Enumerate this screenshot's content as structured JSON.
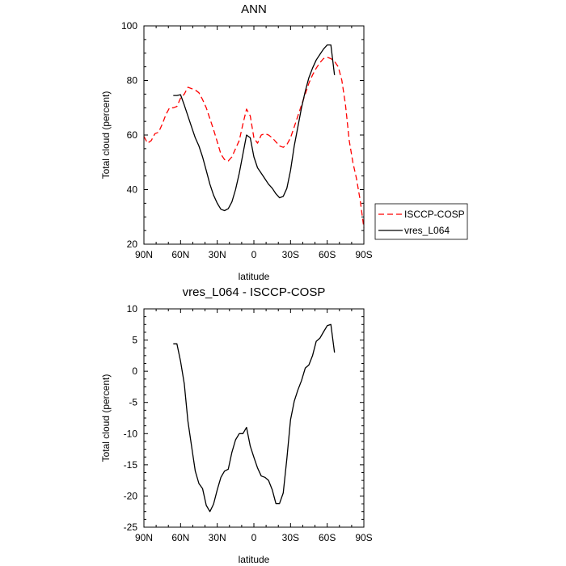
{
  "chart_data": [
    {
      "type": "line",
      "title": "ANN",
      "xlabel": "latitude",
      "ylabel": "Total cloud (percent)",
      "xlim": [
        90,
        -90
      ],
      "ylim": [
        20,
        100
      ],
      "x_ticks": [
        90,
        60,
        30,
        0,
        -30,
        -60,
        -90
      ],
      "x_tick_labels": [
        "90N",
        "60N",
        "30N",
        "0",
        "30S",
        "60S",
        "90S"
      ],
      "y_ticks": [
        20,
        40,
        60,
        80,
        100
      ],
      "y_tick_labels": [
        "20",
        "40",
        "60",
        "80",
        "100"
      ],
      "legend": "right",
      "series": [
        {
          "name": "ISCCP-COSP",
          "color": "#ff0000",
          "dash": "dashed",
          "x": [
            90,
            87,
            84,
            81,
            78,
            75,
            72,
            69,
            66,
            63,
            60,
            57,
            54,
            51,
            48,
            45,
            42,
            39,
            36,
            33,
            30,
            27,
            24,
            21,
            18,
            15,
            12,
            9,
            6,
            3,
            0,
            -3,
            -6,
            -9,
            -12,
            -15,
            -18,
            -21,
            -24,
            -27,
            -30,
            -33,
            -36,
            -39,
            -42,
            -45,
            -48,
            -51,
            -54,
            -57,
            -60,
            -63,
            -66,
            -69,
            -72,
            -75,
            -78,
            -81,
            -84,
            -87,
            -90
          ],
          "y": [
            59.5,
            57,
            58,
            60.5,
            61,
            64,
            67.5,
            70,
            70,
            70.5,
            73.5,
            75,
            77.5,
            77,
            76.5,
            75.5,
            73,
            70,
            66,
            62,
            57.5,
            53,
            51,
            50.5,
            52,
            55,
            58,
            64,
            69.5,
            67,
            59,
            57,
            60,
            60.5,
            60,
            59,
            57.5,
            56,
            55.5,
            56.5,
            59,
            63,
            67,
            71,
            75,
            79,
            82,
            84.5,
            86.5,
            88,
            88.5,
            88,
            87,
            85,
            80,
            71,
            58,
            50,
            44,
            36,
            26
          ]
        },
        {
          "name": "vres_L064",
          "color": "#000000",
          "dash": "solid",
          "x": [
            66,
            63,
            60,
            57,
            54,
            51,
            48,
            45,
            42,
            39,
            36,
            33,
            30,
            27,
            24,
            21,
            18,
            15,
            12,
            9,
            6,
            3,
            0,
            -3,
            -6,
            -9,
            -12,
            -15,
            -18,
            -21,
            -24,
            -27,
            -30,
            -33,
            -36,
            -39,
            -42,
            -45,
            -48,
            -51,
            -54,
            -57,
            -60,
            -63,
            -66
          ],
          "y": [
            74.5,
            74.5,
            74.8,
            71,
            67,
            63,
            59,
            56,
            52,
            47,
            42,
            38,
            35,
            32.8,
            32.3,
            33,
            35.5,
            40,
            46,
            53,
            60,
            59,
            52,
            48,
            46,
            44,
            42,
            40.5,
            38.5,
            37,
            37.5,
            40.5,
            47,
            56,
            63,
            70,
            76,
            81,
            84.5,
            87.5,
            89.5,
            91.5,
            93,
            93,
            82
          ]
        }
      ]
    },
    {
      "type": "line",
      "title": "vres_L064 - ISCCP-COSP",
      "xlabel": "latitude",
      "ylabel": "Total cloud (percent)",
      "xlim": [
        90,
        -90
      ],
      "ylim": [
        -25,
        10
      ],
      "x_ticks": [
        90,
        60,
        30,
        0,
        -30,
        -60,
        -90
      ],
      "x_tick_labels": [
        "90N",
        "60N",
        "30N",
        "0",
        "30S",
        "60S",
        "90S"
      ],
      "y_ticks": [
        -25,
        -20,
        -15,
        -10,
        -5,
        0,
        5,
        10
      ],
      "y_tick_labels": [
        "-25",
        "-20",
        "-15",
        "-10",
        "-5",
        "0",
        "5",
        "10"
      ],
      "series": [
        {
          "color": "#000000",
          "dash": "solid",
          "x": [
            66,
            63,
            60,
            57,
            54,
            51,
            48,
            45,
            42,
            39,
            36,
            33,
            30,
            27,
            24,
            21,
            18,
            15,
            12,
            9,
            6,
            3,
            0,
            -3,
            -6,
            -9,
            -12,
            -15,
            -18,
            -21,
            -24,
            -27,
            -30,
            -33,
            -36,
            -39,
            -42,
            -45,
            -48,
            -51,
            -54,
            -57,
            -60,
            -63,
            -66
          ],
          "y": [
            4.4,
            4.4,
            1.6,
            -2,
            -8,
            -12,
            -16,
            -18,
            -18.8,
            -21.5,
            -22.5,
            -21.3,
            -19,
            -17,
            -16,
            -15.7,
            -13,
            -11,
            -10,
            -10,
            -9,
            -12,
            -13.8,
            -15.5,
            -16.8,
            -17,
            -17.5,
            -19,
            -21.2,
            -21.2,
            -19.5,
            -14,
            -7.8,
            -4.8,
            -3,
            -1.5,
            0.5,
            1,
            2.5,
            4.8,
            5.3,
            6.3,
            7.3,
            7.5,
            3
          ]
        }
      ]
    }
  ]
}
